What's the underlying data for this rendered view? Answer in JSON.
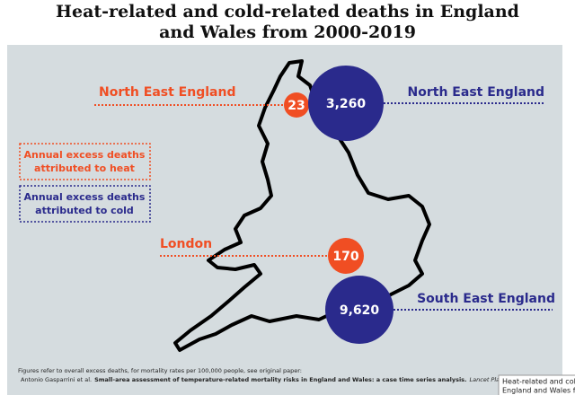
{
  "title": [
    "Heat-related and cold-related deaths in England",
    "and Wales from 2000-2019"
  ],
  "legend": {
    "heat": [
      "Annual excess deaths",
      "attributed to heat"
    ],
    "cold": [
      "Annual excess deaths",
      "attributed to cold"
    ]
  },
  "markers": [
    {
      "label": "North East England",
      "value": "23",
      "kind": "heat"
    },
    {
      "label": "North East England",
      "value": "3,260",
      "kind": "cold"
    },
    {
      "label": "London",
      "value": "170",
      "kind": "heat"
    },
    {
      "label": "South East England",
      "value": "9,620",
      "kind": "cold"
    }
  ],
  "footer": [
    "Figures refer to overall excess deaths, for mortality rates per 100,000 people, see original paper:",
    "Antonio Gasparrini et al.",
    "Small-area assessment of temperature-related mortality risks in England and Wales: a case time series analysis.",
    "Lancet Planetary He"
  ],
  "tooltip": [
    "Heat-related and col",
    "England and Wales f"
  ]
}
